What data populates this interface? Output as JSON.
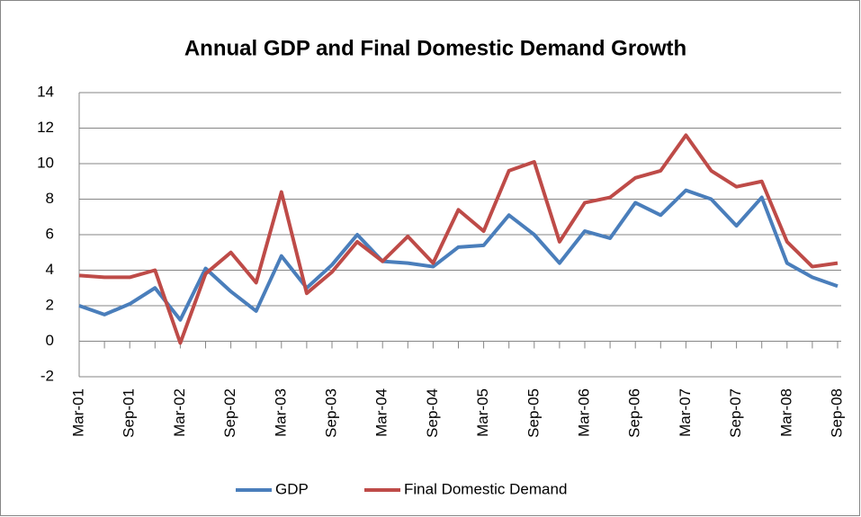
{
  "chart_data": {
    "type": "line",
    "title": "Annual GDP and Final Domestic Demand Growth",
    "categories": [
      "Mar-01",
      null,
      "Sep-01",
      null,
      "Mar-02",
      null,
      "Sep-02",
      null,
      "Mar-03",
      null,
      "Sep-03",
      null,
      "Mar-04",
      null,
      "Sep-04",
      null,
      "Mar-05",
      null,
      "Sep-05",
      null,
      "Mar-06",
      null,
      "Sep-06",
      null,
      "Mar-07",
      null,
      "Sep-07",
      null,
      "Mar-08",
      null,
      "Sep-08"
    ],
    "series": [
      {
        "name": "GDP",
        "color": "#4a7ebb",
        "values": [
          2.0,
          1.5,
          2.1,
          3.0,
          1.2,
          4.1,
          2.8,
          1.7,
          4.8,
          3.0,
          4.3,
          6.0,
          4.5,
          4.4,
          4.2,
          5.3,
          5.4,
          7.1,
          6.0,
          4.4,
          6.2,
          5.8,
          7.8,
          7.1,
          8.5,
          8.0,
          6.5,
          8.1,
          4.4,
          3.6,
          3.1
        ]
      },
      {
        "name": "Final Domestic Demand",
        "color": "#be4b48",
        "values": [
          3.7,
          3.6,
          3.6,
          4.0,
          -0.1,
          3.8,
          5.0,
          3.3,
          8.4,
          2.7,
          3.9,
          5.6,
          4.5,
          5.9,
          4.4,
          7.4,
          6.2,
          9.6,
          10.1,
          5.6,
          7.8,
          8.1,
          9.2,
          9.6,
          11.6,
          9.6,
          8.7,
          9.0,
          5.6,
          4.2,
          4.4
        ]
      }
    ],
    "ylim": [
      -2,
      14
    ],
    "yticks": [
      -2,
      0,
      2,
      4,
      6,
      8,
      10,
      12,
      14
    ],
    "grid": true,
    "legend": "bottom"
  }
}
